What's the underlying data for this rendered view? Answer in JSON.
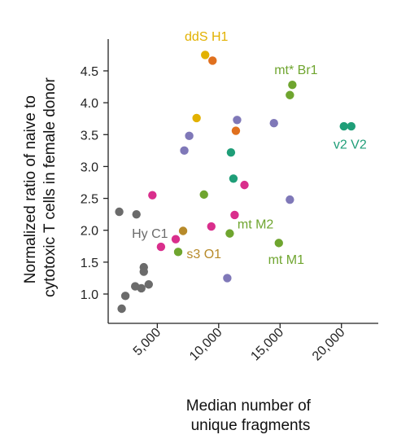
{
  "chart_data": {
    "type": "scatter",
    "title": "",
    "xlabel": [
      "Median number of",
      "unique fragments"
    ],
    "ylabel": [
      "Normalized ratio of naive to",
      "cytotoxic T cells in female donor"
    ],
    "xlim": [
      1000,
      23000
    ],
    "ylim": [
      0.6,
      4.75
    ],
    "xticks": [
      5000,
      10000,
      15000,
      20000
    ],
    "xtick_labels": [
      "5,000",
      "10,000",
      "15,000",
      "20,000"
    ],
    "yticks": [
      1.0,
      1.5,
      2.0,
      2.5,
      3.0,
      3.5,
      4.0,
      4.5
    ],
    "ytick_labels": [
      "1.0",
      "1.5",
      "2.0",
      "2.5",
      "3.0",
      "3.5",
      "4.0",
      "4.5"
    ],
    "grid": false,
    "colors": {
      "gray": "#6b6b6b",
      "yellow": "#e2b100",
      "orange": "#e0701e",
      "olive": "#6fa52f",
      "purple": "#7f78b8",
      "teal": "#1f9e78",
      "magenta": "#d92e8c",
      "brown": "#b78a2a"
    },
    "points": [
      {
        "x": 1900,
        "y": 2.29,
        "color": "gray"
      },
      {
        "x": 3300,
        "y": 2.25,
        "color": "gray"
      },
      {
        "x": 2400,
        "y": 0.97,
        "color": "gray"
      },
      {
        "x": 2100,
        "y": 0.77,
        "color": "gray"
      },
      {
        "x": 3200,
        "y": 1.12,
        "color": "gray"
      },
      {
        "x": 3700,
        "y": 1.09,
        "color": "gray"
      },
      {
        "x": 4300,
        "y": 1.15,
        "color": "gray"
      },
      {
        "x": 3900,
        "y": 1.35,
        "color": "gray"
      },
      {
        "x": 3900,
        "y": 1.42,
        "color": "gray"
      },
      {
        "x": 8900,
        "y": 4.75,
        "color": "yellow"
      },
      {
        "x": 9500,
        "y": 4.66,
        "color": "orange"
      },
      {
        "x": 8200,
        "y": 3.76,
        "color": "yellow"
      },
      {
        "x": 16000,
        "y": 4.28,
        "color": "olive"
      },
      {
        "x": 15800,
        "y": 4.12,
        "color": "olive"
      },
      {
        "x": 11500,
        "y": 3.73,
        "color": "purple"
      },
      {
        "x": 14500,
        "y": 3.68,
        "color": "purple"
      },
      {
        "x": 7600,
        "y": 3.48,
        "color": "purple"
      },
      {
        "x": 7200,
        "y": 3.25,
        "color": "purple"
      },
      {
        "x": 11400,
        "y": 3.56,
        "color": "orange"
      },
      {
        "x": 20200,
        "y": 3.63,
        "color": "teal"
      },
      {
        "x": 20800,
        "y": 3.63,
        "color": "teal"
      },
      {
        "x": 11000,
        "y": 3.22,
        "color": "teal"
      },
      {
        "x": 11200,
        "y": 2.81,
        "color": "teal"
      },
      {
        "x": 12100,
        "y": 2.71,
        "color": "magenta"
      },
      {
        "x": 4600,
        "y": 2.55,
        "color": "magenta"
      },
      {
        "x": 8800,
        "y": 2.56,
        "color": "olive"
      },
      {
        "x": 15800,
        "y": 2.48,
        "color": "purple"
      },
      {
        "x": 11300,
        "y": 2.24,
        "color": "magenta"
      },
      {
        "x": 9400,
        "y": 2.06,
        "color": "magenta"
      },
      {
        "x": 7100,
        "y": 1.99,
        "color": "brown"
      },
      {
        "x": 6500,
        "y": 1.86,
        "color": "magenta"
      },
      {
        "x": 5300,
        "y": 1.74,
        "color": "magenta"
      },
      {
        "x": 6700,
        "y": 1.66,
        "color": "olive"
      },
      {
        "x": 10900,
        "y": 1.95,
        "color": "olive"
      },
      {
        "x": 14900,
        "y": 1.8,
        "color": "olive"
      },
      {
        "x": 10700,
        "y": 1.25,
        "color": "purple"
      }
    ],
    "annotations": [
      {
        "text": "ddS H1",
        "color": "yellow",
        "x": 9000,
        "y": 4.97,
        "anchor": "middle"
      },
      {
        "text": "mt* Br1",
        "color": "olive",
        "x": 16300,
        "y": 4.45,
        "anchor": "middle"
      },
      {
        "text": "v2 V2",
        "color": "teal",
        "x": 20700,
        "y": 3.28,
        "anchor": "middle"
      },
      {
        "text": "Hy C1",
        "color": "gray",
        "x": 4400,
        "y": 1.88,
        "anchor": "middle"
      },
      {
        "text": "mt M2",
        "color": "olive",
        "x": 13000,
        "y": 2.03,
        "anchor": "middle"
      },
      {
        "text": "s3 O1",
        "color": "brown",
        "x": 8800,
        "y": 1.56,
        "anchor": "middle"
      },
      {
        "text": "mt M1",
        "color": "olive",
        "x": 15500,
        "y": 1.47,
        "anchor": "middle"
      }
    ]
  }
}
